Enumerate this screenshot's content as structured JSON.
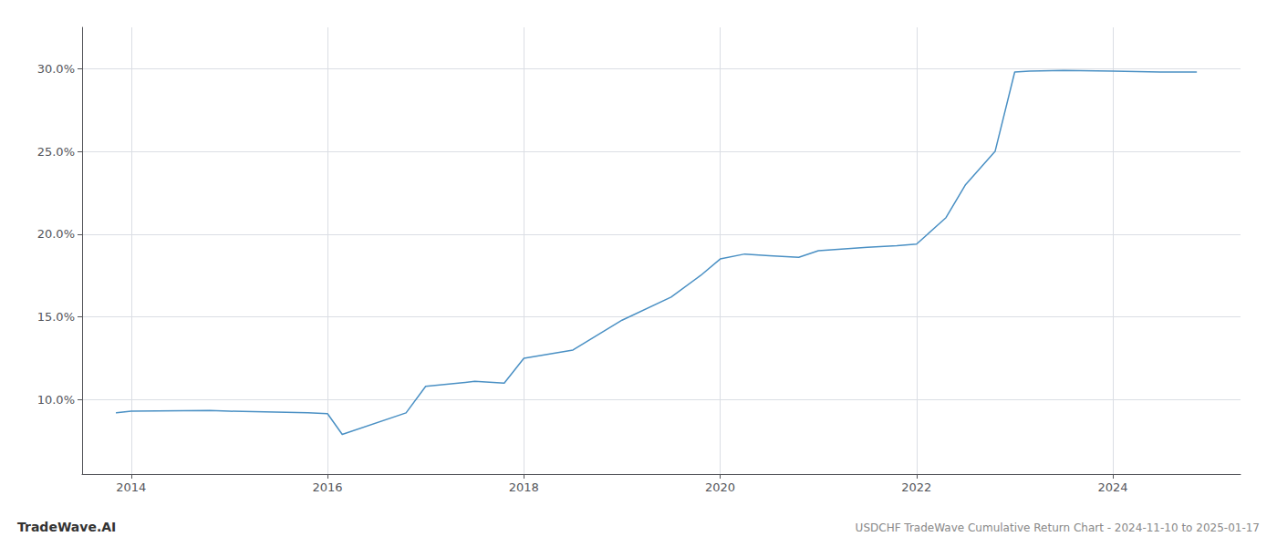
{
  "chart_data": {
    "type": "line",
    "title": "USDCHF TradeWave Cumulative Return Chart - 2024-11-10 to 2025-01-17",
    "annotations": [
      "TradeWave.AI"
    ],
    "color": "#4a90c4",
    "x": [
      2013.85,
      2014.0,
      2014.8,
      2015.0,
      2015.8,
      2016.0,
      2016.15,
      2016.8,
      2017.0,
      2017.5,
      2017.8,
      2018.0,
      2018.5,
      2019.0,
      2019.5,
      2019.8,
      2020.0,
      2020.25,
      2020.5,
      2020.8,
      2021.0,
      2021.5,
      2021.8,
      2022.0,
      2022.3,
      2022.5,
      2022.8,
      2023.0,
      2023.15,
      2023.5,
      2024.0,
      2024.5,
      2024.85
    ],
    "values": [
      9.2,
      9.3,
      9.35,
      9.3,
      9.2,
      9.15,
      7.9,
      9.2,
      10.8,
      11.1,
      11.0,
      12.5,
      13.0,
      14.8,
      16.2,
      17.5,
      18.5,
      18.8,
      18.7,
      18.6,
      19.0,
      19.2,
      19.3,
      19.4,
      21.0,
      23.0,
      25.0,
      29.8,
      29.85,
      29.9,
      29.85,
      29.8,
      29.8
    ],
    "xlim": [
      2013.5,
      2025.3
    ],
    "ylim": [
      5.5,
      32.5
    ],
    "xticks": [
      2014,
      2016,
      2018,
      2020,
      2022,
      2024
    ],
    "yticks": [
      {
        "value": 10.0,
        "label": "10.0%"
      },
      {
        "value": 15.0,
        "label": "15.0%"
      },
      {
        "value": 20.0,
        "label": "20.0%"
      },
      {
        "value": 25.0,
        "label": "25.0%"
      },
      {
        "value": 30.0,
        "label": "30.0%"
      }
    ],
    "grid": true
  }
}
